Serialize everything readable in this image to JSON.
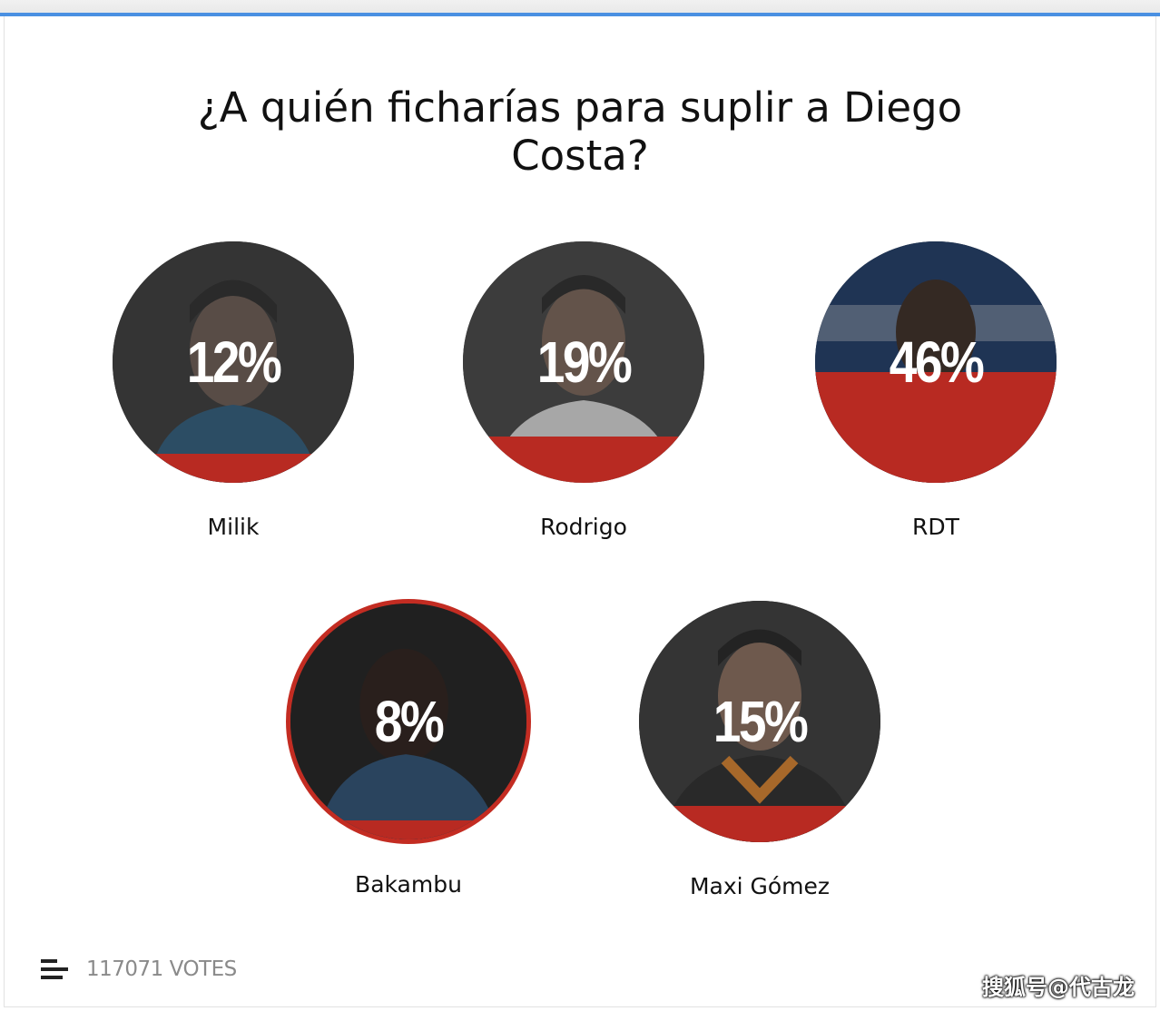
{
  "poll": {
    "title": "¿A quién ficharías para suplir a Diego Costa?",
    "options": [
      {
        "name": "Milik",
        "percent_label": "12%",
        "percent": 12,
        "selected": false
      },
      {
        "name": "Rodrigo",
        "percent_label": "19%",
        "percent": 19,
        "selected": false
      },
      {
        "name": "RDT",
        "percent_label": "46%",
        "percent": 46,
        "selected": false
      },
      {
        "name": "Bakambu",
        "percent_label": "8%",
        "percent": 8,
        "selected": true
      },
      {
        "name": "Maxi Gómez",
        "percent_label": "15%",
        "percent": 15,
        "selected": false
      }
    ]
  },
  "footer": {
    "votes_label": "117071 VOTES",
    "icon": "bars-icon"
  },
  "watermark": "搜狐号@代古龙",
  "colors": {
    "accent_top": "#4a90e2",
    "fill_red": "#b82a22",
    "selected_ring": "#c32c22"
  }
}
